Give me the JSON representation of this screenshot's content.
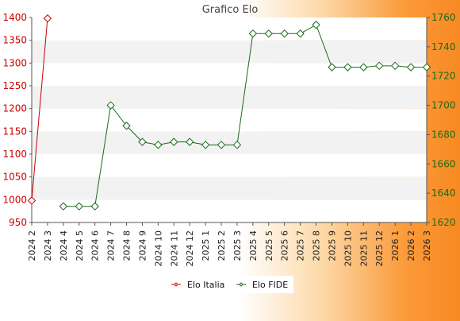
{
  "chart_data": {
    "type": "line",
    "title": "Grafico Elo",
    "categories": [
      "2024 2",
      "2024 3",
      "2024 4",
      "2024 5",
      "2024 6",
      "2024 7",
      "2024 8",
      "2024 9",
      "2024 10",
      "2024 11",
      "2024 12",
      "2025 1",
      "2025 2",
      "2025 3",
      "2025 4",
      "2025 5",
      "2025 6",
      "2025 7",
      "2025 8",
      "2025 9",
      "2025 10",
      "2025 11",
      "2025 12",
      "2026 1",
      "2026 2",
      "2026 3"
    ],
    "y_left": {
      "min": 950,
      "max": 1400,
      "ticks": [
        950,
        1000,
        1050,
        1100,
        1150,
        1200,
        1250,
        1300,
        1350,
        1400
      ],
      "color": "#cc0000"
    },
    "y_right": {
      "min": 1620,
      "max": 1760,
      "ticks": [
        1620,
        1640,
        1660,
        1680,
        1700,
        1720,
        1740,
        1760
      ],
      "color": "#1a6b1a"
    },
    "grid": "horizontal bands",
    "legend_position": "bottom",
    "series": [
      {
        "name": "Elo Italia",
        "axis": "left",
        "color": "#cc0000",
        "values": [
          998,
          1398,
          null,
          null,
          null,
          null,
          null,
          null,
          null,
          null,
          null,
          null,
          null,
          null,
          null,
          null,
          null,
          null,
          null,
          null,
          null,
          null,
          null,
          null,
          null,
          null
        ]
      },
      {
        "name": "Elo FIDE",
        "axis": "right",
        "color": "#1a6b1a",
        "values": [
          null,
          null,
          1631,
          1631,
          1631,
          1700,
          1686,
          1675,
          1673,
          1675,
          1675,
          1673,
          1673,
          1673,
          1749,
          1749,
          1749,
          1749,
          1755,
          1726,
          1726,
          1726,
          1727,
          1727,
          1726,
          1726
        ]
      }
    ]
  }
}
